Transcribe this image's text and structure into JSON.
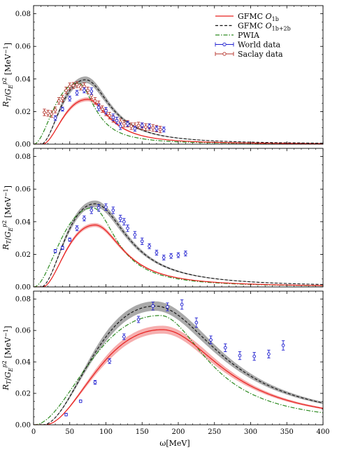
{
  "colors": {
    "gfmc_1b": "#e8201e",
    "gfmc_1b_band": "#f4a0a0",
    "gfmc_1b2b": "#111111",
    "gfmc_1b2b_band": "#9a9a9a",
    "pwia": "#2e8b22",
    "world": "#1f1fd0",
    "saclay": "#b5332b"
  },
  "legend": {
    "placement": "top-right",
    "entries": [
      {
        "key": "gfmc_1b",
        "label": "GFMC O",
        "sub": "1b",
        "style": "solid"
      },
      {
        "key": "gfmc_1b2b",
        "label": "GFMC O",
        "sub": "1b+2b",
        "style": "dashed"
      },
      {
        "key": "pwia",
        "label": "PWIA",
        "sub": "",
        "style": "dashdot"
      },
      {
        "key": "world",
        "label": "World data",
        "sub": "",
        "style": "errorbar"
      },
      {
        "key": "saclay",
        "label": "Saclay data",
        "sub": "",
        "style": "errorbar"
      }
    ]
  },
  "chart_data": {
    "type": "line",
    "xlabel": "ω[MeV]",
    "ylabel": "R_T/G_E^p2 [MeV^-1]",
    "xlim": [
      0,
      400
    ],
    "xticks": [
      0,
      50,
      100,
      150,
      200,
      250,
      300,
      350,
      400
    ],
    "shared_x": true,
    "grid": false,
    "panels": [
      {
        "ylim": [
          0,
          0.085
        ],
        "yticks": [
          "0.00",
          "0.02",
          "0.04",
          "0.06",
          "0.08"
        ],
        "curves": {
          "gfmc_1b": {
            "peak_x": 75,
            "peak_y": 0.0275,
            "width_lo": 30,
            "width_hi": 42,
            "onset": 12,
            "band": 0.0012
          },
          "gfmc_1b2b": {
            "peak_x": 72,
            "peak_y": 0.0395,
            "width_lo": 26,
            "width_hi": 48,
            "onset": 10,
            "band": 0.002
          },
          "pwia": {
            "peak_x": 62,
            "peak_y": 0.0375,
            "width_lo": 24,
            "width_hi": 32,
            "onset": 0
          }
        },
        "world_data": [
          {
            "x": 30,
            "y": 0.016,
            "e": 0.0015
          },
          {
            "x": 40,
            "y": 0.0215,
            "e": 0.0012
          },
          {
            "x": 50,
            "y": 0.028,
            "e": 0.0015
          },
          {
            "x": 60,
            "y": 0.0315,
            "e": 0.0015
          },
          {
            "x": 70,
            "y": 0.033,
            "e": 0.0015
          },
          {
            "x": 80,
            "y": 0.0325,
            "e": 0.002
          },
          {
            "x": 90,
            "y": 0.0225,
            "e": 0.002
          },
          {
            "x": 100,
            "y": 0.0205,
            "e": 0.002
          },
          {
            "x": 110,
            "y": 0.0165,
            "e": 0.002
          },
          {
            "x": 115,
            "y": 0.0145,
            "e": 0.002
          },
          {
            "x": 120,
            "y": 0.011,
            "e": 0.002
          },
          {
            "x": 130,
            "y": 0.0125,
            "e": 0.0015
          },
          {
            "x": 140,
            "y": 0.0095,
            "e": 0.0015
          },
          {
            "x": 150,
            "y": 0.0115,
            "e": 0.0015
          },
          {
            "x": 160,
            "y": 0.011,
            "e": 0.0015
          },
          {
            "x": 170,
            "y": 0.0095,
            "e": 0.0015
          },
          {
            "x": 180,
            "y": 0.009,
            "e": 0.0015
          }
        ],
        "saclay_data": [
          {
            "x": 15,
            "y": 0.0195,
            "e": 0.002
          },
          {
            "x": 20,
            "y": 0.019,
            "e": 0.0018
          },
          {
            "x": 25,
            "y": 0.0185,
            "e": 0.002
          },
          {
            "x": 30,
            "y": 0.021,
            "e": 0.0018
          },
          {
            "x": 35,
            "y": 0.0265,
            "e": 0.002
          },
          {
            "x": 40,
            "y": 0.028,
            "e": 0.002
          },
          {
            "x": 45,
            "y": 0.033,
            "e": 0.002
          },
          {
            "x": 50,
            "y": 0.0355,
            "e": 0.002
          },
          {
            "x": 55,
            "y": 0.036,
            "e": 0.0018
          },
          {
            "x": 60,
            "y": 0.0365,
            "e": 0.0018
          },
          {
            "x": 65,
            "y": 0.035,
            "e": 0.0018
          },
          {
            "x": 70,
            "y": 0.0355,
            "e": 0.002
          },
          {
            "x": 75,
            "y": 0.033,
            "e": 0.002
          },
          {
            "x": 80,
            "y": 0.03,
            "e": 0.002
          },
          {
            "x": 85,
            "y": 0.0265,
            "e": 0.002
          },
          {
            "x": 90,
            "y": 0.0245,
            "e": 0.002
          },
          {
            "x": 95,
            "y": 0.0215,
            "e": 0.002
          },
          {
            "x": 100,
            "y": 0.0195,
            "e": 0.002
          },
          {
            "x": 105,
            "y": 0.0175,
            "e": 0.002
          },
          {
            "x": 110,
            "y": 0.0155,
            "e": 0.002
          },
          {
            "x": 115,
            "y": 0.0145,
            "e": 0.002
          },
          {
            "x": 120,
            "y": 0.0135,
            "e": 0.002
          },
          {
            "x": 125,
            "y": 0.0125,
            "e": 0.002
          },
          {
            "x": 130,
            "y": 0.0125,
            "e": 0.002
          },
          {
            "x": 135,
            "y": 0.011,
            "e": 0.002
          },
          {
            "x": 140,
            "y": 0.011,
            "e": 0.002
          },
          {
            "x": 145,
            "y": 0.0115,
            "e": 0.002
          },
          {
            "x": 150,
            "y": 0.011,
            "e": 0.002
          },
          {
            "x": 155,
            "y": 0.0105,
            "e": 0.002
          },
          {
            "x": 160,
            "y": 0.0105,
            "e": 0.002
          },
          {
            "x": 165,
            "y": 0.01,
            "e": 0.002
          },
          {
            "x": 170,
            "y": 0.0095,
            "e": 0.002
          },
          {
            "x": 175,
            "y": 0.009,
            "e": 0.002
          }
        ]
      },
      {
        "ylim": [
          0,
          0.085
        ],
        "yticks": [
          "0.00",
          "0.02",
          "0.04",
          "0.06",
          "0.08"
        ],
        "curves": {
          "gfmc_1b": {
            "peak_x": 85,
            "peak_y": 0.038,
            "width_lo": 36,
            "width_hi": 55,
            "onset": 12,
            "band": 0.0012
          },
          "gfmc_1b2b": {
            "peak_x": 85,
            "peak_y": 0.051,
            "width_lo": 32,
            "width_hi": 64,
            "onset": 10,
            "band": 0.002
          },
          "pwia": {
            "peak_x": 82,
            "peak_y": 0.0485,
            "width_lo": 30,
            "width_hi": 46,
            "onset": 0
          }
        },
        "world_data": [
          {
            "x": 30,
            "y": 0.022,
            "e": 0.001
          },
          {
            "x": 40,
            "y": 0.024,
            "e": 0.001
          },
          {
            "x": 50,
            "y": 0.029,
            "e": 0.001
          },
          {
            "x": 60,
            "y": 0.036,
            "e": 0.0015
          },
          {
            "x": 70,
            "y": 0.042,
            "e": 0.0015
          },
          {
            "x": 80,
            "y": 0.047,
            "e": 0.002
          },
          {
            "x": 90,
            "y": 0.0485,
            "e": 0.002
          },
          {
            "x": 100,
            "y": 0.049,
            "e": 0.002
          },
          {
            "x": 110,
            "y": 0.047,
            "e": 0.002
          },
          {
            "x": 120,
            "y": 0.042,
            "e": 0.002
          },
          {
            "x": 125,
            "y": 0.04,
            "e": 0.002
          },
          {
            "x": 130,
            "y": 0.036,
            "e": 0.002
          },
          {
            "x": 140,
            "y": 0.032,
            "e": 0.002
          },
          {
            "x": 150,
            "y": 0.028,
            "e": 0.002
          },
          {
            "x": 160,
            "y": 0.025,
            "e": 0.0015
          },
          {
            "x": 170,
            "y": 0.021,
            "e": 0.0015
          },
          {
            "x": 180,
            "y": 0.018,
            "e": 0.0015
          },
          {
            "x": 190,
            "y": 0.019,
            "e": 0.0015
          },
          {
            "x": 200,
            "y": 0.0195,
            "e": 0.0015
          },
          {
            "x": 210,
            "y": 0.0205,
            "e": 0.0015
          }
        ]
      },
      {
        "ylim": [
          0,
          0.085
        ],
        "yticks": [
          "0.00",
          "0.02",
          "0.04",
          "0.06",
          "0.08"
        ],
        "curves": {
          "gfmc_1b": {
            "peak_x": 178,
            "peak_y": 0.0605,
            "width_lo": 65,
            "width_hi": 118,
            "onset": 15,
            "band": 0.0025
          },
          "gfmc_1b2b": {
            "peak_x": 168,
            "peak_y": 0.0755,
            "width_lo": 58,
            "width_hi": 128,
            "onset": 12,
            "band": 0.003
          },
          "pwia": {
            "peak_x": 175,
            "peak_y": 0.0695,
            "width_lo": 60,
            "width_hi": 92,
            "onset": 0
          }
        },
        "world_data": [
          {
            "x": 45,
            "y": 0.0065,
            "e": 0.0008
          },
          {
            "x": 65,
            "y": 0.015,
            "e": 0.0008
          },
          {
            "x": 85,
            "y": 0.027,
            "e": 0.0012
          },
          {
            "x": 105,
            "y": 0.0405,
            "e": 0.0015
          },
          {
            "x": 125,
            "y": 0.056,
            "e": 0.0018
          },
          {
            "x": 145,
            "y": 0.067,
            "e": 0.002
          },
          {
            "x": 165,
            "y": 0.0755,
            "e": 0.0025
          },
          {
            "x": 185,
            "y": 0.075,
            "e": 0.0025
          },
          {
            "x": 205,
            "y": 0.0765,
            "e": 0.003
          },
          {
            "x": 225,
            "y": 0.065,
            "e": 0.003
          },
          {
            "x": 245,
            "y": 0.054,
            "e": 0.0025
          },
          {
            "x": 265,
            "y": 0.049,
            "e": 0.0025
          },
          {
            "x": 285,
            "y": 0.044,
            "e": 0.0025
          },
          {
            "x": 305,
            "y": 0.0435,
            "e": 0.0025
          },
          {
            "x": 325,
            "y": 0.045,
            "e": 0.0025
          },
          {
            "x": 345,
            "y": 0.0505,
            "e": 0.003
          }
        ]
      }
    ]
  }
}
